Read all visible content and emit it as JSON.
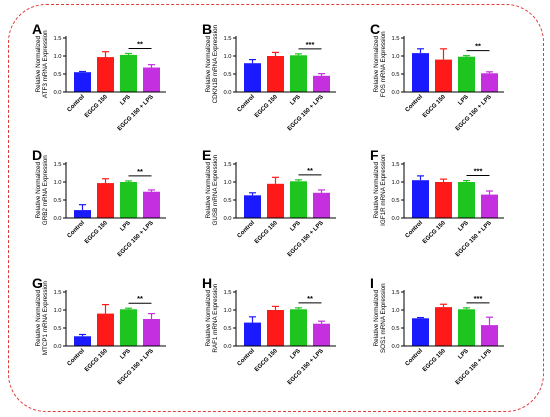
{
  "colors": {
    "frame": "#e23b3b",
    "bars": [
      "#1a1aff",
      "#ff1a1a",
      "#1ec51e",
      "#c42fe0"
    ]
  },
  "chart_data": [
    {
      "type": "bar",
      "panel": "A",
      "title": "",
      "xlabel": "",
      "ylabel": "Relative Normalized\nATF3 mRNA Expression",
      "categories": [
        "Control",
        "EGCG 150",
        "LPS",
        "EGCG 150 + LPS"
      ],
      "values": [
        0.55,
        0.97,
        1.03,
        0.68
      ],
      "errors": [
        0.02,
        0.15,
        0.04,
        0.08
      ],
      "yticks": [
        "0.0",
        "0.5",
        "1.0",
        "1.5"
      ],
      "ylim": [
        0,
        1.5
      ],
      "significance": "**",
      "sig_between": [
        2,
        3
      ]
    },
    {
      "type": "bar",
      "panel": "B",
      "title": "",
      "xlabel": "",
      "ylabel": "Relative Normalized\nCDKN1B mRNA Expression",
      "categories": [
        "Control",
        "EGCG 150",
        "LPS",
        "EGCG 150 + LPS"
      ],
      "values": [
        0.8,
        1.0,
        1.02,
        0.45
      ],
      "errors": [
        0.1,
        0.1,
        0.04,
        0.06
      ],
      "yticks": [
        "0.0",
        "0.5",
        "1.0",
        "1.5"
      ],
      "ylim": [
        0,
        1.5
      ],
      "significance": "***",
      "sig_between": [
        2,
        3
      ]
    },
    {
      "type": "bar",
      "panel": "C",
      "title": "",
      "xlabel": "",
      "ylabel": "Relative Normalized\nFOS mRNA Expression",
      "categories": [
        "Control",
        "EGCG 150",
        "LPS",
        "EGCG 150 + LPS"
      ],
      "values": [
        1.08,
        0.9,
        0.98,
        0.52
      ],
      "errors": [
        0.12,
        0.3,
        0.03,
        0.04
      ],
      "yticks": [
        "0.0",
        "0.5",
        "1.0",
        "1.5"
      ],
      "ylim": [
        0,
        1.5
      ],
      "significance": "**",
      "sig_between": [
        2,
        3
      ]
    },
    {
      "type": "bar",
      "panel": "D",
      "title": "",
      "xlabel": "",
      "ylabel": "Relative Normalized\nGRB2 mRNA Expression",
      "categories": [
        "Control",
        "EGCG 150",
        "LPS",
        "EGCG 150 + LPS"
      ],
      "values": [
        0.22,
        0.97,
        1.0,
        0.73
      ],
      "errors": [
        0.15,
        0.12,
        0.03,
        0.05
      ],
      "yticks": [
        "0.0",
        "0.5",
        "1.0",
        "1.5"
      ],
      "ylim": [
        0,
        1.5
      ],
      "significance": "**",
      "sig_between": [
        2,
        3
      ]
    },
    {
      "type": "bar",
      "panel": "E",
      "title": "",
      "xlabel": "",
      "ylabel": "Relative Normalized\nGUSB mRNA Expression",
      "categories": [
        "Control",
        "EGCG 150",
        "LPS",
        "EGCG 150 + LPS"
      ],
      "values": [
        0.63,
        0.95,
        1.02,
        0.7
      ],
      "errors": [
        0.07,
        0.18,
        0.04,
        0.08
      ],
      "yticks": [
        "0.0",
        "0.5",
        "1.0",
        "1.5"
      ],
      "ylim": [
        0,
        1.5
      ],
      "significance": "**",
      "sig_between": [
        2,
        3
      ]
    },
    {
      "type": "bar",
      "panel": "F",
      "title": "",
      "xlabel": "",
      "ylabel": "Relative Normalized\nIGF1R mRNA Expression",
      "categories": [
        "Control",
        "EGCG 150",
        "LPS",
        "EGCG 150 + LPS"
      ],
      "values": [
        1.05,
        1.0,
        1.0,
        0.65
      ],
      "errors": [
        0.12,
        0.08,
        0.04,
        0.1
      ],
      "yticks": [
        "0.0",
        "0.5",
        "1.0",
        "1.5"
      ],
      "ylim": [
        0,
        1.5
      ],
      "significance": "***",
      "sig_between": [
        2,
        3
      ]
    },
    {
      "type": "bar",
      "panel": "G",
      "title": "",
      "xlabel": "",
      "ylabel": "Relative Normalized\nMTCP1 mRNA Expression",
      "categories": [
        "Control",
        "EGCG 150",
        "LPS",
        "EGCG 150 + LPS"
      ],
      "values": [
        0.27,
        0.9,
        1.02,
        0.75
      ],
      "errors": [
        0.05,
        0.25,
        0.03,
        0.15
      ],
      "yticks": [
        "0.0",
        "0.5",
        "1.0",
        "1.5"
      ],
      "ylim": [
        0,
        1.5
      ],
      "significance": "**",
      "sig_between": [
        2,
        3
      ]
    },
    {
      "type": "bar",
      "panel": "H",
      "title": "",
      "xlabel": "",
      "ylabel": "Relative Normalized\nRAF1 mRNA Expression",
      "categories": [
        "Control",
        "EGCG 150",
        "LPS",
        "EGCG 150 + LPS"
      ],
      "values": [
        0.65,
        1.0,
        1.02,
        0.62
      ],
      "errors": [
        0.16,
        0.1,
        0.04,
        0.07
      ],
      "yticks": [
        "0.0",
        "0.5",
        "1.0",
        "1.5"
      ],
      "ylim": [
        0,
        1.5
      ],
      "significance": "**",
      "sig_between": [
        2,
        3
      ]
    },
    {
      "type": "bar",
      "panel": "I",
      "title": "",
      "xlabel": "",
      "ylabel": "Relative Normalized\nSOS1 mRNA Expression",
      "categories": [
        "Control",
        "EGCG 150",
        "LPS",
        "EGCG 150 + LPS"
      ],
      "values": [
        0.77,
        1.08,
        1.02,
        0.58
      ],
      "errors": [
        0.02,
        0.08,
        0.04,
        0.22
      ],
      "yticks": [
        "0.0",
        "0.5",
        "1.0",
        "1.5"
      ],
      "ylim": [
        0,
        1.5
      ],
      "significance": "***",
      "sig_between": [
        2,
        3
      ]
    }
  ]
}
